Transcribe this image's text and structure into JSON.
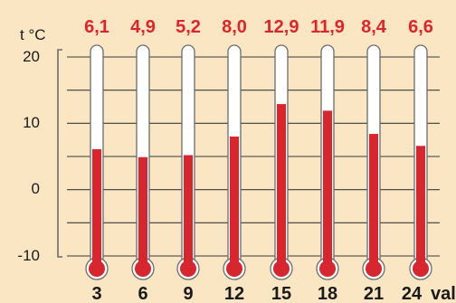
{
  "chart_data": {
    "type": "bar",
    "chart_style": "thermometer",
    "ylabel": "t °C",
    "xlabel": "val.",
    "categories": [
      "3",
      "6",
      "9",
      "12",
      "15",
      "18",
      "21",
      "24"
    ],
    "values": [
      6.1,
      4.9,
      5.2,
      8.0,
      12.9,
      11.9,
      8.4,
      6.6
    ],
    "value_labels": [
      "6,1",
      "4,9",
      "5,2",
      "8,0",
      "12,9",
      "11,9",
      "8,4",
      "6,6"
    ],
    "yticks": [
      "20",
      "10",
      "0",
      "-10"
    ],
    "ytick_values": [
      20,
      10,
      0,
      -10
    ],
    "ylim": [
      -10,
      20
    ],
    "grid": true,
    "colors": {
      "background": "#fbe6c4",
      "mercury": "#d8262e",
      "value_label": "#e0242b",
      "tube": "#ffffff",
      "tube_outline": "#6b6b6b",
      "gridline": "#3a3a3a",
      "text": "#1a1a1a"
    }
  }
}
